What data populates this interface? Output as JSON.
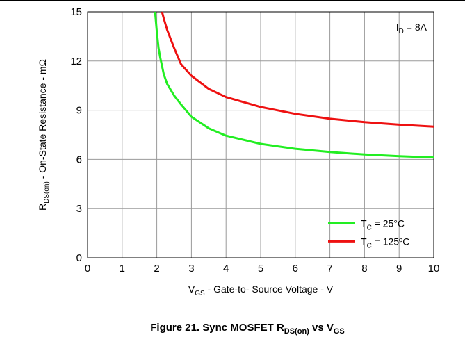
{
  "chart_data": {
    "type": "line",
    "xlabel": {
      "main": "V",
      "sub": "GS",
      "rest": " - Gate-to- Source Voltage - V"
    },
    "ylabel": {
      "main": "R",
      "sub": "DS(on)",
      "rest": " - On-State Resistance - mΩ"
    },
    "xlim": [
      0,
      10
    ],
    "ylim": [
      0,
      15
    ],
    "xticks": [
      "0",
      "1",
      "2",
      "3",
      "4",
      "5",
      "6",
      "7",
      "8",
      "9",
      "10"
    ],
    "yticks": [
      "0",
      "3",
      "6",
      "9",
      "12",
      "15"
    ],
    "grid": true,
    "annotation": {
      "main": "I",
      "sub": "D",
      "rest": " = 8A"
    },
    "legend_position": "bottom-right",
    "series": [
      {
        "name": {
          "main": "T",
          "sub": "C",
          "rest": " = 25°C"
        },
        "color": "#22ee22",
        "x": [
          1.95,
          2.0,
          2.05,
          2.1,
          2.2,
          2.3,
          2.5,
          2.7,
          3.0,
          3.5,
          4.0,
          5.0,
          6.0,
          7.0,
          8.0,
          9.0,
          10.0
        ],
        "y": [
          15.0,
          13.8,
          12.8,
          12.2,
          11.2,
          10.6,
          9.9,
          9.35,
          8.6,
          7.9,
          7.45,
          6.95,
          6.65,
          6.45,
          6.3,
          6.2,
          6.12
        ]
      },
      {
        "name": {
          "main": "T",
          "sub": "C",
          "rest": " = 125ºC"
        },
        "color": "#ee1111",
        "x": [
          2.15,
          2.2,
          2.3,
          2.5,
          2.7,
          3.0,
          3.5,
          4.0,
          5.0,
          6.0,
          7.0,
          8.0,
          9.0,
          10.0
        ],
        "y": [
          15.0,
          14.6,
          13.9,
          12.8,
          11.8,
          11.1,
          10.3,
          9.8,
          9.2,
          8.78,
          8.48,
          8.27,
          8.12,
          8.0
        ]
      }
    ]
  },
  "caption": {
    "lead": "Figure 21. Sync MOSFET R",
    "sub1": "DS(on)",
    "mid": " vs V",
    "sub2": "GS"
  }
}
